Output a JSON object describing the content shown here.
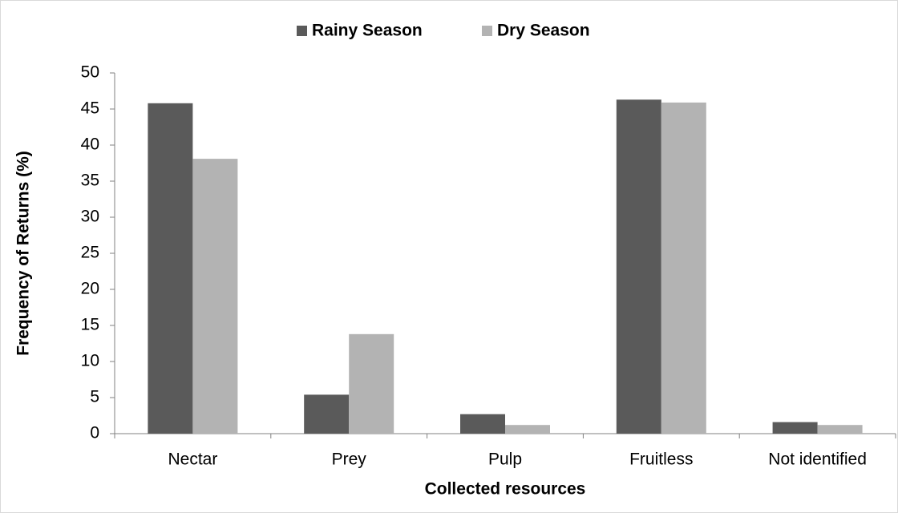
{
  "chart_data": {
    "type": "bar",
    "x_label": "Collected  resources",
    "y_label": "Frequency  of Returns (%)",
    "categories": [
      "Nectar",
      "Prey",
      "Pulp",
      "Fruitless",
      "Not identified"
    ],
    "series": [
      {
        "name": "Rainy Season",
        "color": "#5a5a5a",
        "values": [
          45.8,
          5.4,
          2.7,
          46.3,
          1.6
        ]
      },
      {
        "name": "Dry Season",
        "color": "#b3b3b3",
        "values": [
          38.1,
          13.8,
          1.2,
          45.9,
          1.2
        ]
      }
    ],
    "ylim": [
      0,
      50
    ],
    "yticks": [
      0,
      5,
      10,
      15,
      20,
      25,
      30,
      35,
      40,
      45,
      50
    ],
    "legend": "top",
    "grid": false
  }
}
